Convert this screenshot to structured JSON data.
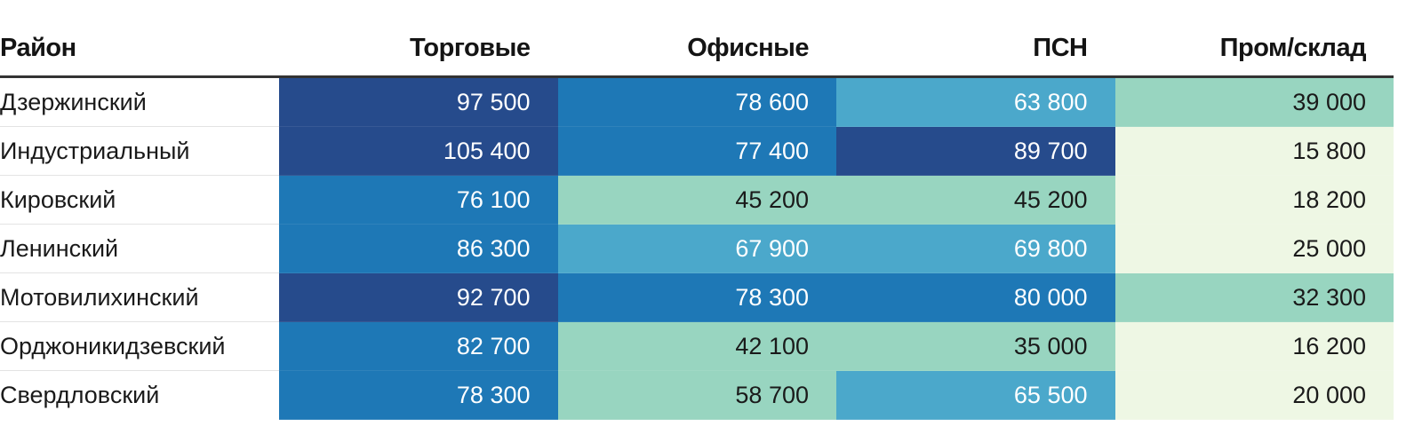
{
  "chart_data": {
    "type": "table",
    "columns": [
      "Район",
      "Торговые",
      "Офисные",
      "ПСН",
      "Пром/склад"
    ],
    "rows": [
      {
        "district": "Дзержинский",
        "values": [
          97500,
          78600,
          63800,
          39000
        ],
        "labels": [
          "97 500",
          "78 600",
          "63 800",
          "39 000"
        ]
      },
      {
        "district": "Индустриальный",
        "values": [
          105400,
          77400,
          89700,
          15800
        ],
        "labels": [
          "105 400",
          "77 400",
          "89 700",
          "15 800"
        ]
      },
      {
        "district": "Кировский",
        "values": [
          76100,
          45200,
          45200,
          18200
        ],
        "labels": [
          "76 100",
          "45 200",
          "45 200",
          "18 200"
        ]
      },
      {
        "district": "Ленинский",
        "values": [
          86300,
          67900,
          69800,
          25000
        ],
        "labels": [
          "86 300",
          "67 900",
          "69 800",
          "25 000"
        ]
      },
      {
        "district": "Мотовилихинский",
        "values": [
          92700,
          78300,
          80000,
          32300
        ],
        "labels": [
          "92 700",
          "78 300",
          "80 000",
          "32 300"
        ]
      },
      {
        "district": "Орджоникидзевский",
        "values": [
          82700,
          42100,
          35000,
          16200
        ],
        "labels": [
          "82 700",
          "42 100",
          "35 000",
          "16 200"
        ]
      },
      {
        "district": "Свердловский",
        "values": [
          78300,
          58700,
          65500,
          20000
        ],
        "labels": [
          "78 300",
          "58 700",
          "65 500",
          "20 000"
        ]
      }
    ],
    "color_scale": {
      "thresholds": [
        30000,
        60000,
        70000,
        88000
      ],
      "colors": [
        "#eef7e4",
        "#98d5c0",
        "#4ba8cb",
        "#1e78b6",
        "#264b8c"
      ],
      "text_colors": [
        "#1a1a1a",
        "#1a1a1a",
        "#ffffff",
        "#ffffff",
        "#ffffff"
      ]
    }
  }
}
